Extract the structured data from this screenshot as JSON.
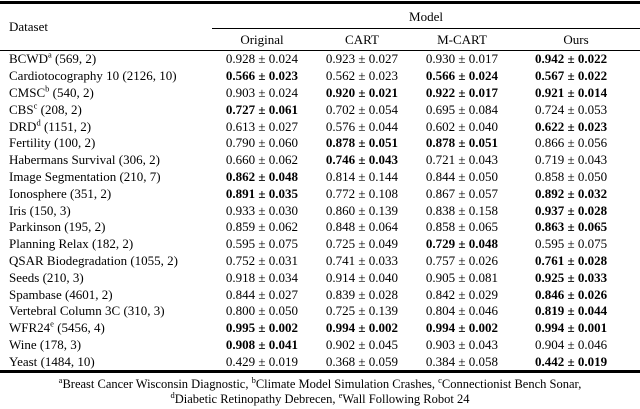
{
  "page": {
    "background": "#ffffff",
    "text_color": "#000000"
  },
  "table": {
    "dataset_header": "Dataset",
    "model_header": "Model",
    "columns": [
      "Original",
      "CART",
      "M-CART",
      "Ours"
    ],
    "rows": [
      {
        "name": "BCWD",
        "sup": "a",
        "meta": "(569, 2)",
        "cells": [
          {
            "v": "0.928 ± 0.024",
            "bold": false
          },
          {
            "v": "0.923 ± 0.027",
            "bold": false
          },
          {
            "v": "0.930 ± 0.017",
            "bold": false
          },
          {
            "v": "0.942 ± 0.022",
            "bold": true
          }
        ]
      },
      {
        "name": "Cardiotocography 10",
        "sup": "",
        "meta": "(2126, 10)",
        "cells": [
          {
            "v": "0.566 ± 0.023",
            "bold": true
          },
          {
            "v": "0.562 ± 0.023",
            "bold": false
          },
          {
            "v": "0.566 ± 0.024",
            "bold": true
          },
          {
            "v": "0.567 ± 0.022",
            "bold": true
          }
        ]
      },
      {
        "name": "CMSC",
        "sup": "b",
        "meta": "(540, 2)",
        "cells": [
          {
            "v": "0.903 ± 0.024",
            "bold": false
          },
          {
            "v": "0.920 ± 0.021",
            "bold": true
          },
          {
            "v": "0.922 ± 0.017",
            "bold": true
          },
          {
            "v": "0.921 ± 0.014",
            "bold": true
          }
        ]
      },
      {
        "name": "CBS",
        "sup": "c",
        "meta": "(208, 2)",
        "cells": [
          {
            "v": "0.727 ± 0.061",
            "bold": true
          },
          {
            "v": "0.702 ± 0.054",
            "bold": false
          },
          {
            "v": "0.695 ± 0.084",
            "bold": false
          },
          {
            "v": "0.724 ± 0.053",
            "bold": false
          }
        ]
      },
      {
        "name": "DRD",
        "sup": "d",
        "meta": "(1151, 2)",
        "cells": [
          {
            "v": "0.613 ± 0.027",
            "bold": false
          },
          {
            "v": "0.576 ± 0.044",
            "bold": false
          },
          {
            "v": "0.602 ± 0.040",
            "bold": false
          },
          {
            "v": "0.622 ± 0.023",
            "bold": true
          }
        ]
      },
      {
        "name": "Fertility",
        "sup": "",
        "meta": "(100, 2)",
        "cells": [
          {
            "v": "0.790 ± 0.060",
            "bold": false
          },
          {
            "v": "0.878 ± 0.051",
            "bold": true
          },
          {
            "v": "0.878 ± 0.051",
            "bold": true
          },
          {
            "v": "0.866 ± 0.056",
            "bold": false
          }
        ]
      },
      {
        "name": "Habermans Survival",
        "sup": "",
        "meta": "(306, 2)",
        "cells": [
          {
            "v": "0.660 ± 0.062",
            "bold": false
          },
          {
            "v": "0.746 ± 0.043",
            "bold": true
          },
          {
            "v": "0.721 ± 0.043",
            "bold": false
          },
          {
            "v": "0.719 ± 0.043",
            "bold": false
          }
        ]
      },
      {
        "name": "Image Segmentation",
        "sup": "",
        "meta": "(210, 7)",
        "cells": [
          {
            "v": "0.862 ± 0.048",
            "bold": true
          },
          {
            "v": "0.814 ± 0.144",
            "bold": false
          },
          {
            "v": "0.844 ± 0.050",
            "bold": false
          },
          {
            "v": "0.858 ± 0.050",
            "bold": false
          }
        ]
      },
      {
        "name": "Ionosphere",
        "sup": "",
        "meta": "(351, 2)",
        "cells": [
          {
            "v": "0.891 ± 0.035",
            "bold": true
          },
          {
            "v": "0.772 ± 0.108",
            "bold": false
          },
          {
            "v": "0.867 ± 0.057",
            "bold": false
          },
          {
            "v": "0.892 ± 0.032",
            "bold": true
          }
        ]
      },
      {
        "name": "Iris",
        "sup": "",
        "meta": "(150, 3)",
        "cells": [
          {
            "v": "0.933 ± 0.030",
            "bold": false
          },
          {
            "v": "0.860 ± 0.139",
            "bold": false
          },
          {
            "v": "0.838 ± 0.158",
            "bold": false
          },
          {
            "v": "0.937 ± 0.028",
            "bold": true
          }
        ]
      },
      {
        "name": "Parkinson",
        "sup": "",
        "meta": "(195, 2)",
        "cells": [
          {
            "v": "0.859 ± 0.062",
            "bold": false
          },
          {
            "v": "0.848 ± 0.064",
            "bold": false
          },
          {
            "v": "0.858 ± 0.065",
            "bold": false
          },
          {
            "v": "0.863 ± 0.065",
            "bold": true
          }
        ]
      },
      {
        "name": "Planning Relax",
        "sup": "",
        "meta": "(182, 2)",
        "cells": [
          {
            "v": "0.595 ± 0.075",
            "bold": false
          },
          {
            "v": "0.725 ± 0.049",
            "bold": false
          },
          {
            "v": "0.729 ± 0.048",
            "bold": true
          },
          {
            "v": "0.595 ± 0.075",
            "bold": false
          }
        ]
      },
      {
        "name": "QSAR Biodegradation",
        "sup": "",
        "meta": "(1055, 2)",
        "cells": [
          {
            "v": "0.752 ± 0.031",
            "bold": false
          },
          {
            "v": "0.741 ± 0.033",
            "bold": false
          },
          {
            "v": "0.757 ± 0.026",
            "bold": false
          },
          {
            "v": "0.761 ± 0.028",
            "bold": true
          }
        ]
      },
      {
        "name": "Seeds",
        "sup": "",
        "meta": "(210, 3)",
        "cells": [
          {
            "v": "0.918 ± 0.034",
            "bold": false
          },
          {
            "v": "0.914 ± 0.040",
            "bold": false
          },
          {
            "v": "0.905 ± 0.081",
            "bold": false
          },
          {
            "v": "0.925 ± 0.033",
            "bold": true
          }
        ]
      },
      {
        "name": "Spambase",
        "sup": "",
        "meta": "(4601, 2)",
        "cells": [
          {
            "v": "0.844 ± 0.027",
            "bold": false
          },
          {
            "v": "0.839 ± 0.028",
            "bold": false
          },
          {
            "v": "0.842 ± 0.029",
            "bold": false
          },
          {
            "v": "0.846 ± 0.026",
            "bold": true
          }
        ]
      },
      {
        "name": "Vertebral Column 3C",
        "sup": "",
        "meta": "(310, 3)",
        "cells": [
          {
            "v": "0.800 ± 0.050",
            "bold": false
          },
          {
            "v": "0.725 ± 0.139",
            "bold": false
          },
          {
            "v": "0.804 ± 0.046",
            "bold": false
          },
          {
            "v": "0.819 ± 0.044",
            "bold": true
          }
        ]
      },
      {
        "name": "WFR24",
        "sup": "e",
        "meta": "(5456, 4)",
        "cells": [
          {
            "v": "0.995 ± 0.002",
            "bold": true
          },
          {
            "v": "0.994 ± 0.002",
            "bold": true
          },
          {
            "v": "0.994 ± 0.002",
            "bold": true
          },
          {
            "v": "0.994 ± 0.001",
            "bold": true
          }
        ]
      },
      {
        "name": "Wine",
        "sup": "",
        "meta": "(178, 3)",
        "cells": [
          {
            "v": "0.908 ± 0.041",
            "bold": true
          },
          {
            "v": "0.902 ± 0.045",
            "bold": false
          },
          {
            "v": "0.903 ± 0.043",
            "bold": false
          },
          {
            "v": "0.904 ± 0.046",
            "bold": false
          }
        ]
      },
      {
        "name": "Yeast",
        "sup": "",
        "meta": "(1484, 10)",
        "cells": [
          {
            "v": "0.429 ± 0.019",
            "bold": false
          },
          {
            "v": "0.368 ± 0.059",
            "bold": false
          },
          {
            "v": "0.384 ± 0.058",
            "bold": false
          },
          {
            "v": "0.442 ± 0.019",
            "bold": true
          }
        ]
      }
    ]
  },
  "footnote": {
    "lines": [
      [
        {
          "sup": "a",
          "text": "Breast Cancer Wisconsin Diagnostic, "
        },
        {
          "sup": "b",
          "text": "Climate Model Simulation Crashes, "
        },
        {
          "sup": "c",
          "text": "Connectionist Bench Sonar,"
        }
      ],
      [
        {
          "sup": "d",
          "text": "Diabetic Retinopathy Debrecen, "
        },
        {
          "sup": "e",
          "text": "Wall Following Robot 24"
        }
      ]
    ]
  }
}
